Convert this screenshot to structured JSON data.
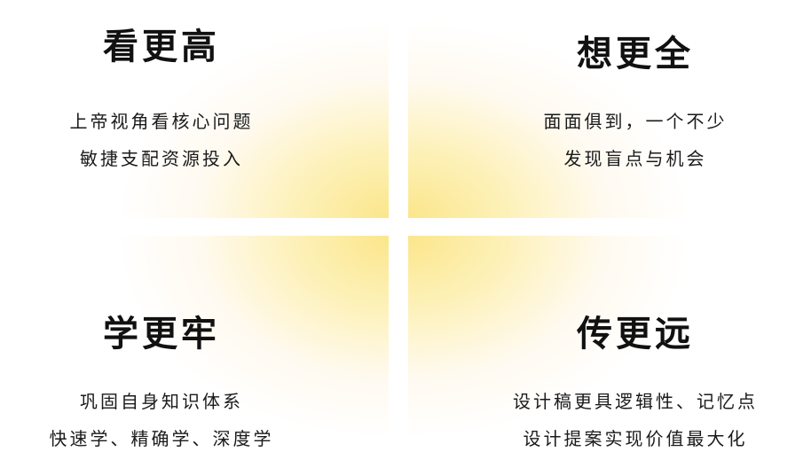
{
  "quadrants": [
    {
      "title": "看更高",
      "lines": [
        "上帝视角看核心问题",
        "敏捷支配资源投入"
      ]
    },
    {
      "title": "想更全",
      "lines": [
        "面面俱到，一个不少",
        "发现盲点与机会"
      ]
    },
    {
      "title": "学更牢",
      "lines": [
        "巩固自身知识体系",
        "快速学、精确学、深度学"
      ]
    },
    {
      "title": "传更远",
      "lines": [
        "设计稿更具逻辑性、记忆点",
        "设计提案实现价值最大化"
      ]
    }
  ],
  "colors": {
    "accent_yellow": "#fbe68b",
    "text": "#111111",
    "background": "#ffffff"
  }
}
